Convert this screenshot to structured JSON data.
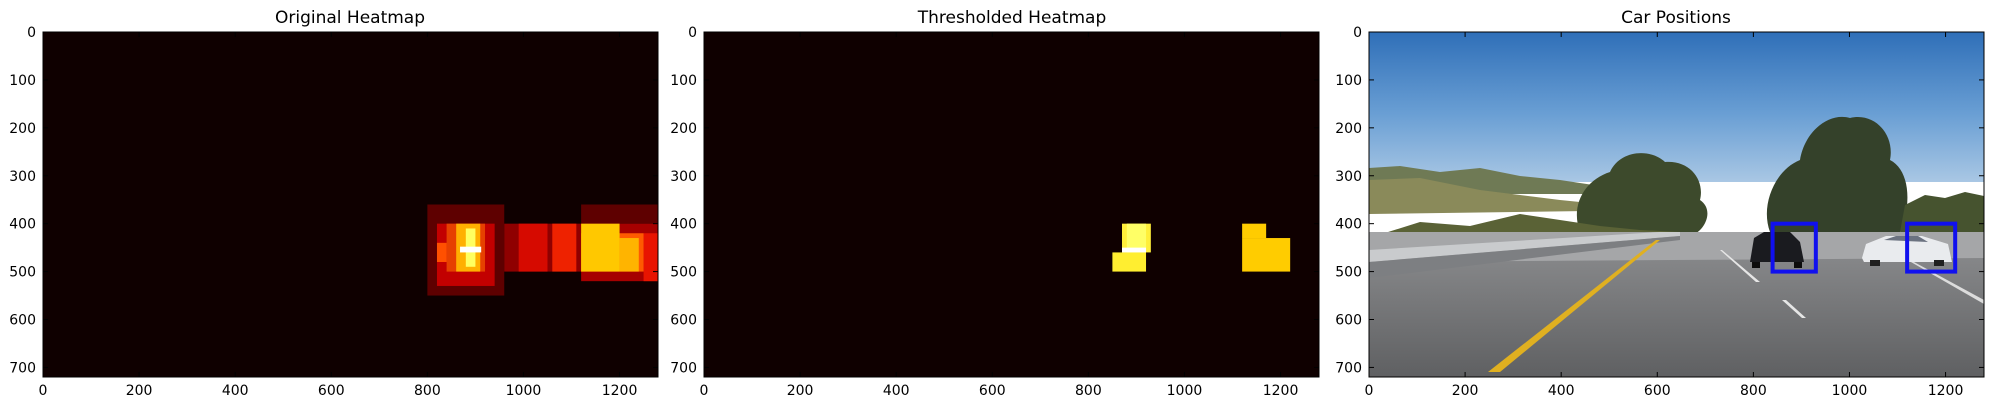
{
  "chart_data": [
    {
      "type": "heatmap",
      "title": "Original Heatmap",
      "xlim": [
        0,
        1280
      ],
      "ylim": [
        720,
        0
      ],
      "xticks": [
        "0",
        "200",
        "400",
        "600",
        "800",
        "1000",
        "1200"
      ],
      "yticks": [
        "0",
        "100",
        "200",
        "300",
        "400",
        "500",
        "600",
        "700"
      ],
      "colormap": "hot",
      "background": "#0f0000",
      "cells": [
        {
          "x0": 800,
          "x1": 960,
          "y0": 360,
          "y1": 550,
          "color": "#5e0000"
        },
        {
          "x0": 1120,
          "x1": 1280,
          "y0": 360,
          "y1": 400,
          "color": "#5e0000"
        },
        {
          "x0": 960,
          "x1": 1120,
          "y0": 400,
          "y1": 500,
          "color": "#8f0000"
        },
        {
          "x0": 1120,
          "x1": 1280,
          "y0": 400,
          "y1": 520,
          "color": "#a60000"
        },
        {
          "x0": 820,
          "x1": 940,
          "y0": 400,
          "y1": 530,
          "color": "#c20000"
        },
        {
          "x0": 840,
          "x1": 920,
          "y0": 400,
          "y1": 500,
          "color": "#e64000"
        },
        {
          "x0": 990,
          "x1": 1050,
          "y0": 400,
          "y1": 500,
          "color": "#d60a00"
        },
        {
          "x0": 1060,
          "x1": 1110,
          "y0": 400,
          "y1": 500,
          "color": "#ee2200"
        },
        {
          "x0": 1250,
          "x1": 1280,
          "y0": 420,
          "y1": 520,
          "color": "#e81400"
        },
        {
          "x0": 1120,
          "x1": 1250,
          "y0": 420,
          "y1": 500,
          "color": "#ff5a00"
        },
        {
          "x0": 820,
          "x1": 840,
          "y0": 440,
          "y1": 480,
          "color": "#ff5000"
        },
        {
          "x0": 860,
          "x1": 910,
          "y0": 400,
          "y1": 500,
          "color": "#ffb000"
        },
        {
          "x0": 1120,
          "x1": 1200,
          "y0": 400,
          "y1": 500,
          "color": "#ffc800"
        },
        {
          "x0": 1200,
          "x1": 1240,
          "y0": 430,
          "y1": 500,
          "color": "#ffb400"
        },
        {
          "x0": 880,
          "x1": 900,
          "y0": 410,
          "y1": 490,
          "color": "#ffff60"
        },
        {
          "x0": 868,
          "x1": 912,
          "y0": 448,
          "y1": 460,
          "color": "#ffffff"
        }
      ]
    },
    {
      "type": "heatmap",
      "title": "Thresholded Heatmap",
      "xlim": [
        0,
        1280
      ],
      "ylim": [
        720,
        0
      ],
      "xticks": [
        "0",
        "200",
        "400",
        "600",
        "800",
        "1000",
        "1200"
      ],
      "yticks": [
        "0",
        "100",
        "200",
        "300",
        "400",
        "500",
        "600",
        "700"
      ],
      "colormap": "hot",
      "background": "#0f0000",
      "cells": [
        {
          "x0": 870,
          "x1": 930,
          "y0": 400,
          "y1": 460,
          "color": "#ffef3a"
        },
        {
          "x0": 850,
          "x1": 920,
          "y0": 460,
          "y1": 500,
          "color": "#ffee30"
        },
        {
          "x0": 880,
          "x1": 920,
          "y0": 400,
          "y1": 460,
          "color": "#ffff66"
        },
        {
          "x0": 870,
          "x1": 920,
          "y0": 450,
          "y1": 460,
          "color": "#ffffff"
        },
        {
          "x0": 1120,
          "x1": 1170,
          "y0": 400,
          "y1": 430,
          "color": "#ffcc00"
        },
        {
          "x0": 1120,
          "x1": 1220,
          "y0": 430,
          "y1": 500,
          "color": "#ffcc00"
        }
      ]
    },
    {
      "type": "image",
      "title": "Car Positions",
      "xlim": [
        0,
        1280
      ],
      "ylim": [
        720,
        0
      ],
      "xticks": [
        "0",
        "200",
        "400",
        "600",
        "800",
        "1000",
        "1200"
      ],
      "yticks": [
        "0",
        "100",
        "200",
        "300",
        "400",
        "500",
        "600",
        "700"
      ],
      "boxes": [
        {
          "x0": 840,
          "x1": 930,
          "y0": 400,
          "y1": 500,
          "color": "#1010ee"
        },
        {
          "x0": 1120,
          "x1": 1220,
          "y0": 400,
          "y1": 500,
          "color": "#1010ee"
        }
      ]
    }
  ]
}
